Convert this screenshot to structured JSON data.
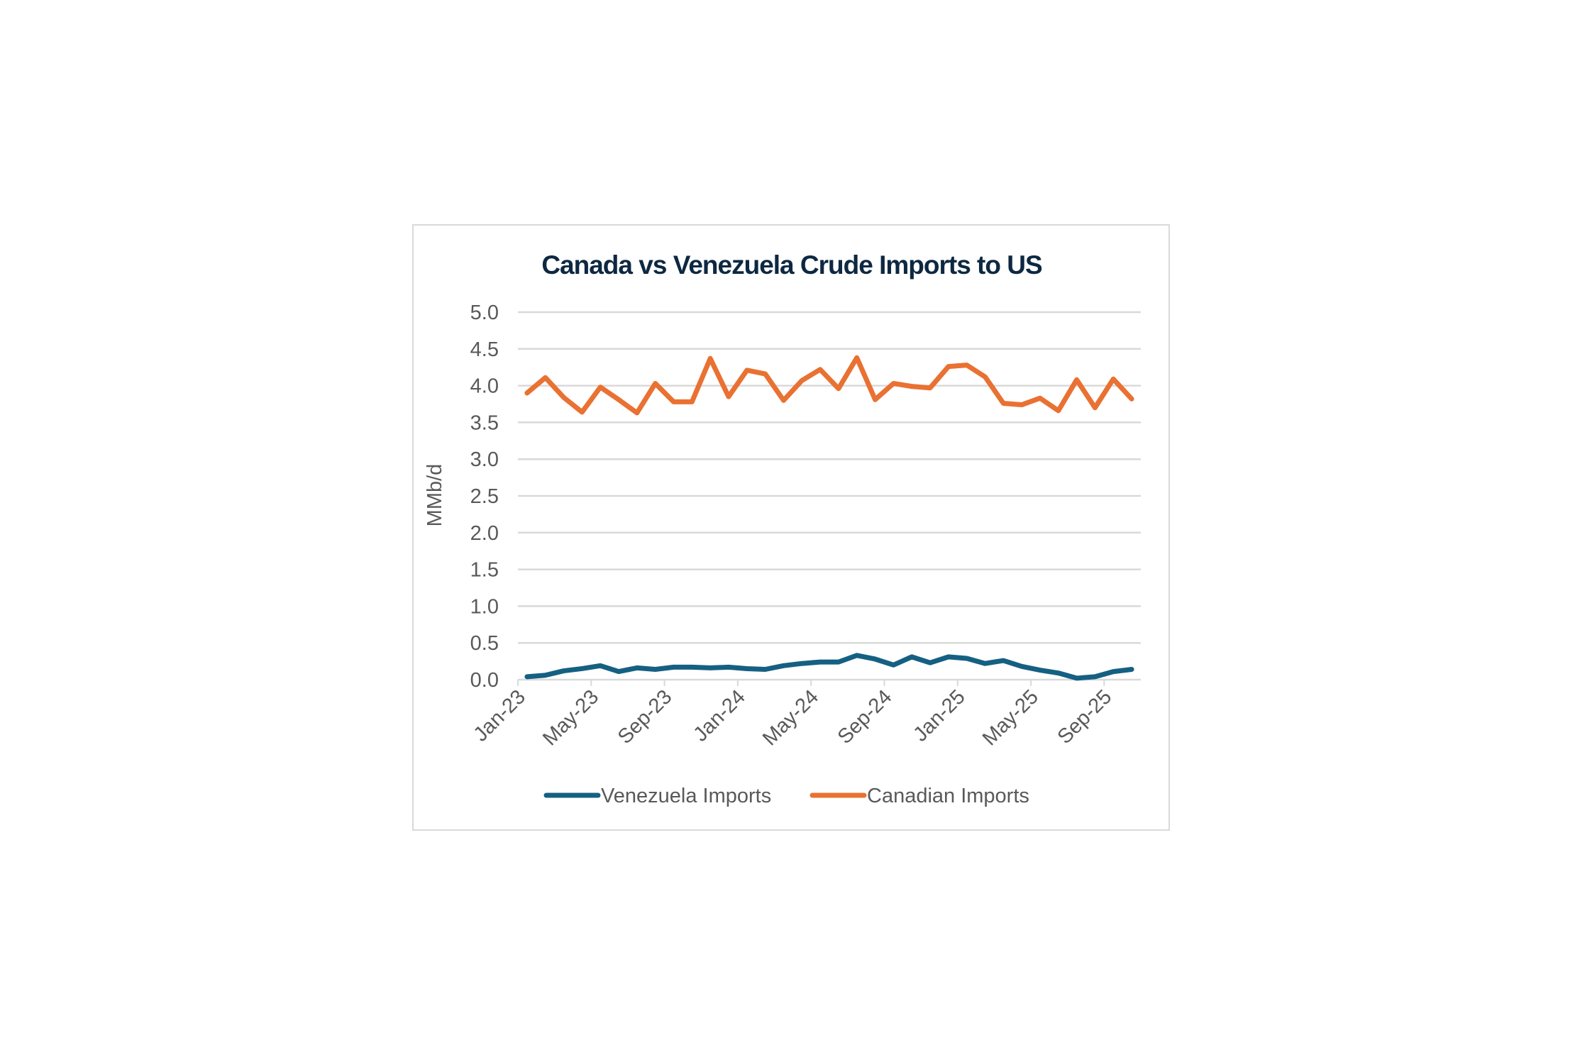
{
  "chart_data": {
    "type": "line",
    "title": "Canada vs Venezuela Crude Imports to US",
    "xlabel": "",
    "ylabel": "MMb/d",
    "ylim": [
      0,
      5
    ],
    "yticks": [
      "0.0",
      "0.5",
      "1.0",
      "1.5",
      "2.0",
      "2.5",
      "3.0",
      "3.5",
      "4.0",
      "4.5",
      "5.0"
    ],
    "grid": true,
    "legend": "bottom",
    "x": [
      "Jan-23",
      "Feb-23",
      "Mar-23",
      "Apr-23",
      "May-23",
      "Jun-23",
      "Jul-23",
      "Aug-23",
      "Sep-23",
      "Oct-23",
      "Nov-23",
      "Dec-23",
      "Jan-24",
      "Feb-24",
      "Mar-24",
      "Apr-24",
      "May-24",
      "Jun-24",
      "Jul-24",
      "Aug-24",
      "Sep-24",
      "Oct-24",
      "Nov-24",
      "Dec-24",
      "Jan-25",
      "Feb-25",
      "Mar-25",
      "Apr-25",
      "May-25",
      "Jun-25",
      "Jul-25",
      "Aug-25",
      "Sep-25",
      "Oct-25"
    ],
    "xtick_labels": [
      "Jan-23",
      "May-23",
      "Sep-23",
      "Jan-24",
      "May-24",
      "Sep-24",
      "Jan-25",
      "May-25",
      "Sep-25"
    ],
    "series": [
      {
        "name": "Venezuela Imports",
        "color": "#156082",
        "values": [
          0.04,
          0.06,
          0.12,
          0.15,
          0.19,
          0.11,
          0.16,
          0.14,
          0.17,
          0.17,
          0.16,
          0.17,
          0.15,
          0.14,
          0.19,
          0.22,
          0.24,
          0.24,
          0.33,
          0.28,
          0.2,
          0.31,
          0.23,
          0.31,
          0.29,
          0.22,
          0.26,
          0.18,
          0.13,
          0.09,
          0.02,
          0.04,
          0.11,
          0.14
        ]
      },
      {
        "name": "Canadian Imports",
        "color": "#E97132",
        "values": [
          3.9,
          4.11,
          3.84,
          3.64,
          3.98,
          3.81,
          3.63,
          4.03,
          3.78,
          3.78,
          4.37,
          3.85,
          4.21,
          4.16,
          3.8,
          4.07,
          4.22,
          3.96,
          4.38,
          3.81,
          4.03,
          3.99,
          3.97,
          4.26,
          4.28,
          4.12,
          3.76,
          3.74,
          3.83,
          3.66,
          4.08,
          3.7,
          4.09,
          3.82
        ]
      }
    ]
  }
}
